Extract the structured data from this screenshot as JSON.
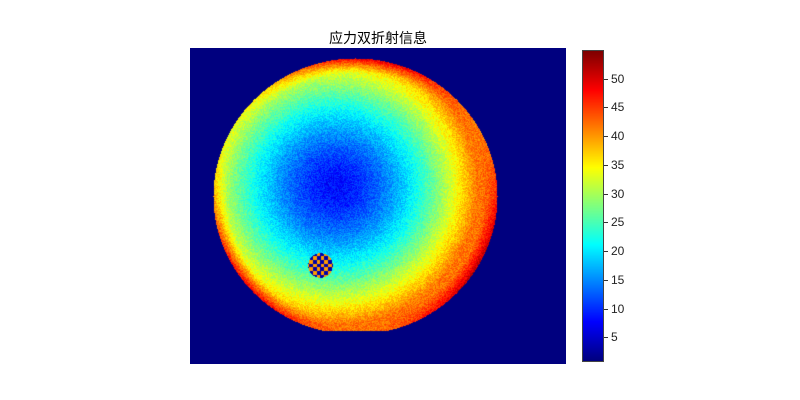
{
  "chart_data": {
    "type": "heatmap",
    "title": "应力双折射信息",
    "colormap": "jet",
    "colorbar": {
      "range": [
        0.7,
        55
      ],
      "ticks": [
        5,
        10,
        15,
        20,
        25,
        30,
        35,
        40,
        45,
        50
      ],
      "tick_labels": [
        "5",
        "10",
        "15",
        "20",
        "25",
        "30",
        "35",
        "40",
        "45",
        "50"
      ]
    },
    "background_value": 0.7,
    "description_values": {
      "center_value": 8,
      "mid_ring_value": 22,
      "edge_value": 42,
      "edge_max": 52
    },
    "xlim": null,
    "ylim": null,
    "grid": false
  }
}
